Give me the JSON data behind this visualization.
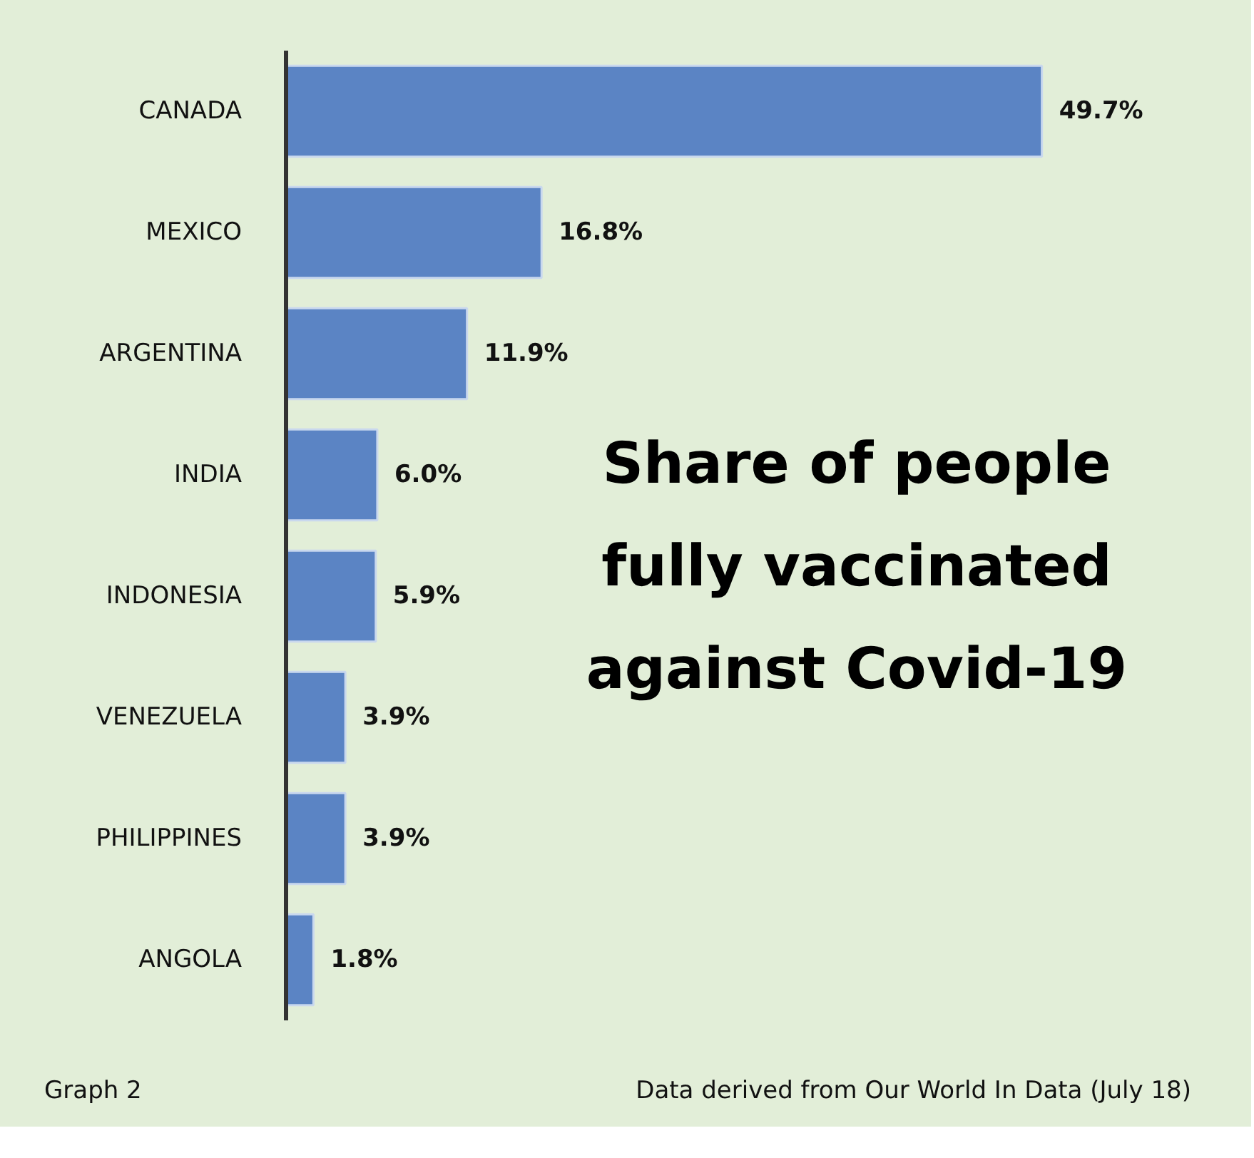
{
  "chart_data": {
    "type": "bar",
    "orientation": "horizontal",
    "title": "Share of people fully vaccinated against Covid-19",
    "categories": [
      "CANADA",
      "MEXICO",
      "ARGENTINA",
      "INDIA",
      "INDONESIA",
      "VENEZUELA",
      "PHILIPPINES",
      "ANGOLA"
    ],
    "values": [
      49.7,
      16.8,
      11.9,
      6.0,
      5.9,
      3.9,
      3.9,
      1.8
    ],
    "value_labels": [
      "49.7%",
      "16.8%",
      "11.9%",
      "6.0%",
      "5.9%",
      "3.9%",
      "3.9%",
      "1.8%"
    ],
    "color": "#5b84c4",
    "grid": false,
    "annotations": [
      "Graph 2",
      "Data derived from Our World In Data (July 18)"
    ]
  }
}
